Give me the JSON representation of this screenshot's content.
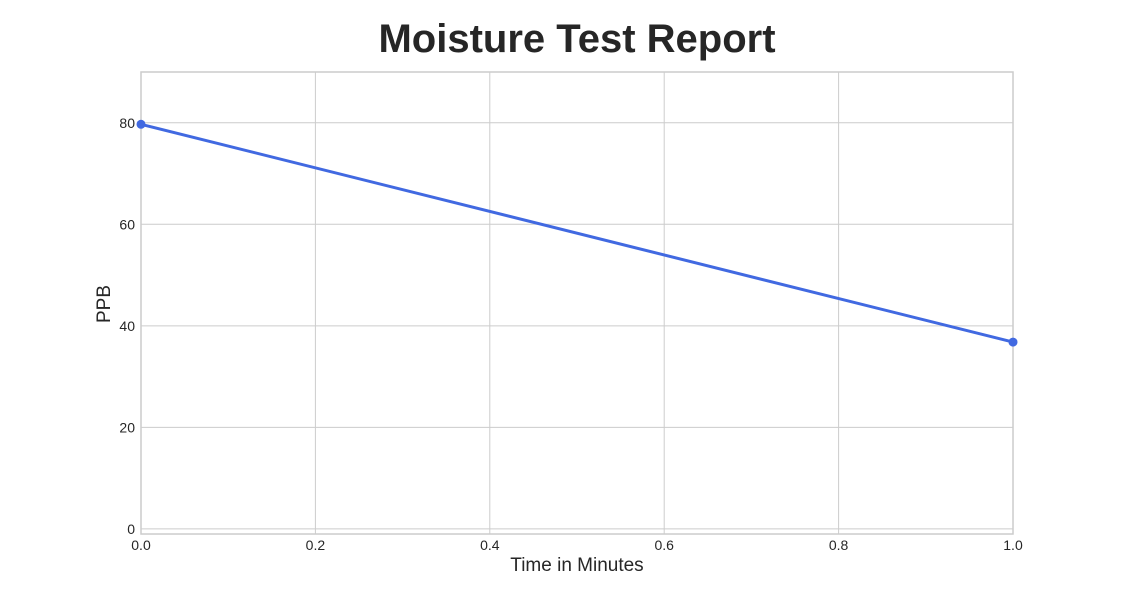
{
  "chart_data": {
    "type": "line",
    "title": "Moisture Test Report",
    "xlabel": "Time in Minutes",
    "ylabel": "PPB",
    "xlim": [
      0,
      1
    ],
    "ylim": [
      -1,
      90
    ],
    "x_ticks": [
      "0.0",
      "0.2",
      "0.4",
      "0.6",
      "0.8",
      "1.0"
    ],
    "x_tick_values": [
      0,
      0.2,
      0.4,
      0.6,
      0.8,
      1.0
    ],
    "y_ticks": [
      "0",
      "20",
      "40",
      "60",
      "80"
    ],
    "y_tick_values": [
      0,
      20,
      40,
      60,
      80
    ],
    "grid": true,
    "series": [
      {
        "color": "#4169E1",
        "x": [
          0,
          1
        ],
        "y": [
          79.7,
          36.8
        ],
        "marker": "circle"
      }
    ]
  }
}
